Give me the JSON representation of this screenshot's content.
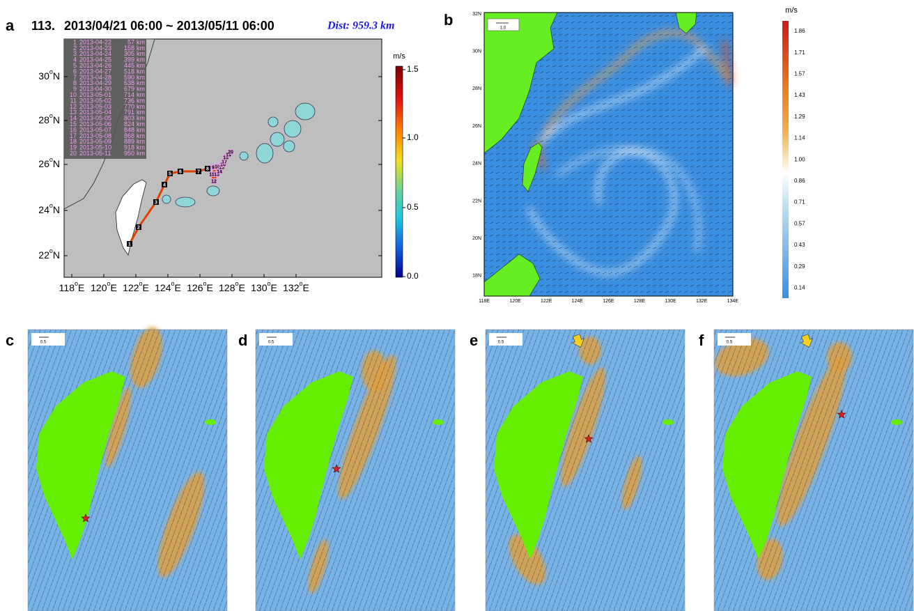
{
  "panel_labels": [
    "a",
    "b",
    "c",
    "d",
    "e",
    "f"
  ],
  "map_a": {
    "title_id": "113.",
    "title_period": "2013/04/21 06:00 ~ 2013/05/11 06:00",
    "distance": "Dist: 959.3 km",
    "legend_rows": [
      [
        "1",
        "2013-04-22",
        "57",
        "km"
      ],
      [
        "2",
        "2013-04-23",
        "158",
        "km"
      ],
      [
        "3",
        "2013-04-24",
        "305",
        "km"
      ],
      [
        "4",
        "2013-04-25",
        "399",
        "km"
      ],
      [
        "5",
        "2013-04-26",
        "445",
        "km"
      ],
      [
        "6",
        "2013-04-27",
        "518",
        "km"
      ],
      [
        "7",
        "2013-04-28",
        "590",
        "km"
      ],
      [
        "8",
        "2013-04-29",
        "638",
        "km"
      ],
      [
        "9",
        "2013-04-30",
        "679",
        "km"
      ],
      [
        "10",
        "2013-05-01",
        "714",
        "km"
      ],
      [
        "11",
        "2013-05-02",
        "736",
        "km"
      ],
      [
        "12",
        "2013-05-03",
        "770",
        "km"
      ],
      [
        "13",
        "2013-05-04",
        "791",
        "km"
      ],
      [
        "14",
        "2013-05-05",
        "803",
        "km"
      ],
      [
        "15",
        "2013-05-06",
        "824",
        "km"
      ],
      [
        "16",
        "2013-05-07",
        "848",
        "km"
      ],
      [
        "17",
        "2013-05-08",
        "868",
        "km"
      ],
      [
        "18",
        "2013-05-09",
        "889",
        "km"
      ],
      [
        "19",
        "2013-05-10",
        "918",
        "km"
      ],
      [
        "20",
        "2013-05-11",
        "950",
        "km"
      ]
    ],
    "lat_labels": [
      "30",
      "28",
      "26",
      "24",
      "22"
    ],
    "lon_labels": [
      "118",
      "120",
      "122",
      "124",
      "126",
      "128",
      "130",
      "132"
    ],
    "degree": "o",
    "north": "N",
    "east": "E",
    "colorbar": {
      "unit": "m/s",
      "ticks": [
        "1.5",
        "1.0",
        "0.5",
        "0.0"
      ]
    }
  },
  "map_b": {
    "scale_arrow": "1.0",
    "lat_labels": [
      "32N",
      "30N",
      "28N",
      "26N",
      "24N",
      "22N",
      "20N",
      "18N"
    ],
    "lon_labels": [
      "118E",
      "120E",
      "122E",
      "124E",
      "126E",
      "128E",
      "130E",
      "132E",
      "134E"
    ],
    "colorbar": {
      "unit": "m/s",
      "ticks": [
        "1.86",
        "1.71",
        "1.57",
        "1.43",
        "1.29",
        "1.14",
        "1.00",
        "0.86",
        "0.71",
        "0.57",
        "0.43",
        "0.29",
        "0.14"
      ]
    }
  },
  "panels_cf": [
    {
      "scale_arrow": "0.5"
    },
    {
      "scale_arrow": "0.5"
    },
    {
      "scale_arrow": "0.5"
    },
    {
      "scale_arrow": "0.5"
    }
  ]
}
